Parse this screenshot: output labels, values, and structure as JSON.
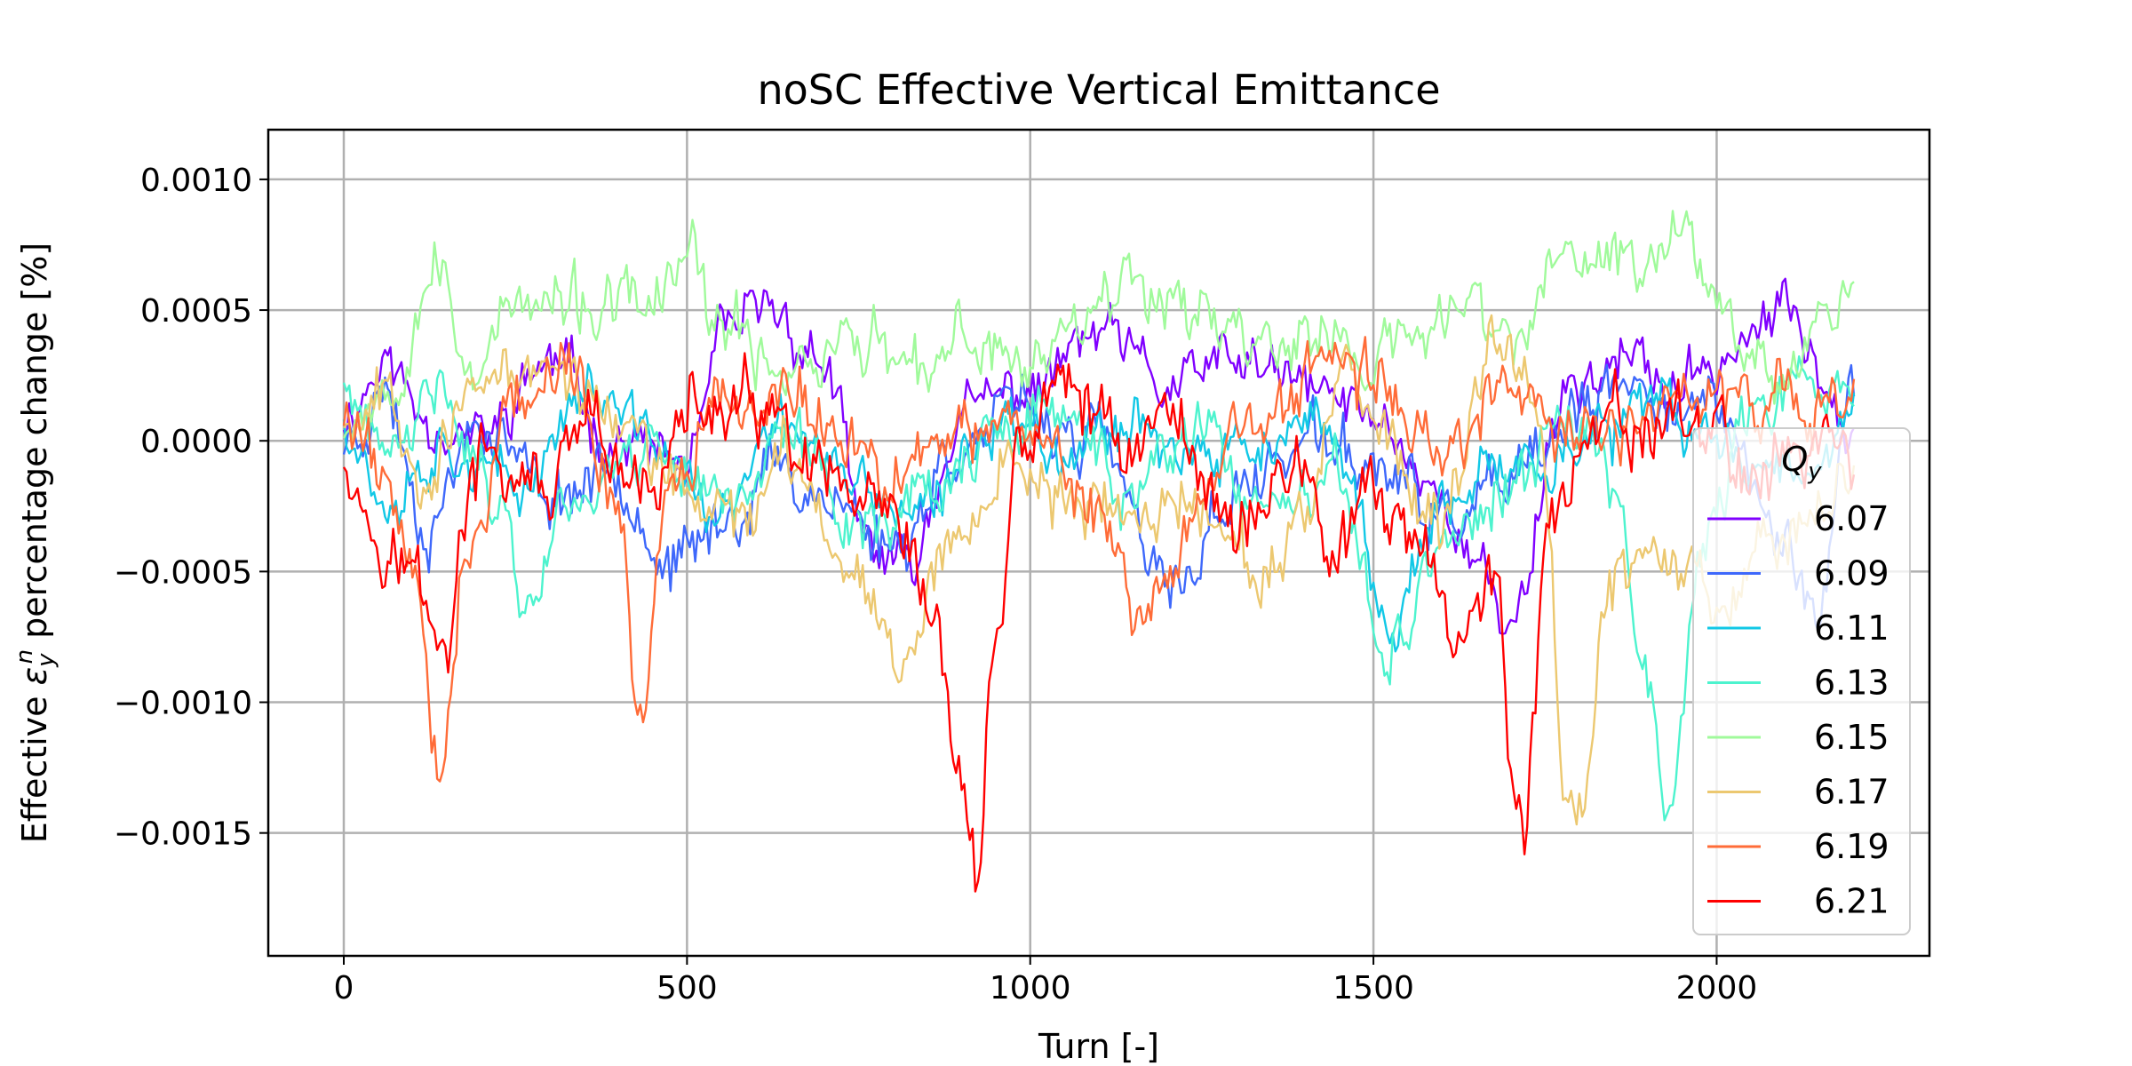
{
  "chart_data": {
    "type": "line",
    "title": "noSC Effective Vertical Emittance",
    "xlabel": "Turn [-]",
    "ylabel": {
      "prefix": "Effective ",
      "symbol": "ε",
      "sub": "y",
      "sup": "n",
      "suffix": " percentage change [%]"
    },
    "xlim": [
      -110,
      2310
    ],
    "ylim": [
      -0.00197,
      0.00119
    ],
    "x_ticks": [
      0,
      500,
      1000,
      1500,
      2000
    ],
    "y_ticks": [
      0.001,
      0.0005,
      0.0,
      -0.0005,
      -0.001,
      -0.0015
    ],
    "x_tick_labels": [
      "0",
      "500",
      "1000",
      "1500",
      "2000"
    ],
    "y_tick_labels": [
      "0.0010",
      "0.0005",
      "0.0000",
      "−0.0005",
      "−0.0010",
      "−0.0015"
    ],
    "grid": true,
    "legend": {
      "title_symbol": "Q",
      "title_sub": "y",
      "placement": "right"
    },
    "x_step": 4,
    "x_max": 2200,
    "series": [
      {
        "name": "6.07",
        "color": "#8000ff",
        "seed": 11,
        "amp": 0.00012,
        "anchors": [
          [
            0,
            0.0001
          ],
          [
            60,
            0.0003
          ],
          [
            120,
            0.0001
          ],
          [
            200,
            0.0
          ],
          [
            300,
            0.0003
          ],
          [
            400,
            0.0
          ],
          [
            500,
            -0.0001
          ],
          [
            560,
            0.0004
          ],
          [
            620,
            0.0005
          ],
          [
            700,
            0.0003
          ],
          [
            760,
            -0.0004
          ],
          [
            820,
            -0.0005
          ],
          [
            900,
            0.0001
          ],
          [
            1000,
            0.0002
          ],
          [
            1100,
            0.0004
          ],
          [
            1200,
            0.0002
          ],
          [
            1300,
            0.0003
          ],
          [
            1400,
            0.0002
          ],
          [
            1500,
            0.0001
          ],
          [
            1600,
            -0.0002
          ],
          [
            1650,
            -0.0005
          ],
          [
            1700,
            -0.0007
          ],
          [
            1780,
            0.0002
          ],
          [
            1850,
            0.0003
          ],
          [
            1950,
            0.0002
          ],
          [
            2050,
            0.0004
          ],
          [
            2100,
            0.0005
          ],
          [
            2150,
            0.0003
          ],
          [
            2200,
            0.0001
          ]
        ]
      },
      {
        "name": "6.09",
        "color": "#3e68fb",
        "seed": 23,
        "amp": 0.00013,
        "anchors": [
          [
            0,
            0.0
          ],
          [
            60,
            0.0002
          ],
          [
            120,
            -0.0003
          ],
          [
            200,
            0.0001
          ],
          [
            300,
            -0.0002
          ],
          [
            400,
            -0.0001
          ],
          [
            480,
            -0.0005
          ],
          [
            560,
            -0.0003
          ],
          [
            620,
            -0.0001
          ],
          [
            700,
            -0.0002
          ],
          [
            800,
            -0.0004
          ],
          [
            900,
            0.0
          ],
          [
            1000,
            0.0001
          ],
          [
            1100,
            0.0
          ],
          [
            1200,
            -0.0006
          ],
          [
            1300,
            -0.0002
          ],
          [
            1400,
            0.0
          ],
          [
            1500,
            -0.0001
          ],
          [
            1600,
            -0.0003
          ],
          [
            1700,
            -0.0002
          ],
          [
            1800,
            0.0001
          ],
          [
            1900,
            0.0002
          ],
          [
            2000,
            0.0001
          ],
          [
            2100,
            -0.0004
          ],
          [
            2150,
            -0.0006
          ],
          [
            2200,
            0.0002
          ]
        ]
      },
      {
        "name": "6.11",
        "color": "#12c8e6",
        "seed": 37,
        "amp": 0.00012,
        "anchors": [
          [
            0,
            0.0001
          ],
          [
            60,
            -0.0002
          ],
          [
            150,
            0.0
          ],
          [
            250,
            -0.0002
          ],
          [
            350,
            0.0002
          ],
          [
            450,
            0.0
          ],
          [
            550,
            -0.0003
          ],
          [
            650,
            0.0001
          ],
          [
            750,
            -0.0002
          ],
          [
            850,
            -0.0003
          ],
          [
            950,
            0.0001
          ],
          [
            1050,
            0.0
          ],
          [
            1150,
            0.0001
          ],
          [
            1250,
            -0.0001
          ],
          [
            1350,
            0.0
          ],
          [
            1450,
            0.0
          ],
          [
            1520,
            -0.0007
          ],
          [
            1600,
            -0.0003
          ],
          [
            1700,
            -0.0001
          ],
          [
            1800,
            0.0
          ],
          [
            1900,
            0.0001
          ],
          [
            2000,
            0.0
          ],
          [
            2100,
            -0.0001
          ],
          [
            2200,
            0.0001
          ]
        ]
      },
      {
        "name": "6.13",
        "color": "#4df3ce",
        "seed": 41,
        "amp": 0.00013,
        "anchors": [
          [
            0,
            0.0002
          ],
          [
            60,
            -0.0001
          ],
          [
            150,
            0.0002
          ],
          [
            220,
            -0.0002
          ],
          [
            270,
            -0.0006
          ],
          [
            330,
            -0.0002
          ],
          [
            450,
            0.0
          ],
          [
            550,
            -0.0002
          ],
          [
            650,
            0.0
          ],
          [
            750,
            -0.0003
          ],
          [
            850,
            -0.0002
          ],
          [
            950,
            0.0
          ],
          [
            1050,
            0.0001
          ],
          [
            1150,
            -0.0002
          ],
          [
            1250,
            0.0
          ],
          [
            1350,
            -0.0003
          ],
          [
            1450,
            -0.0002
          ],
          [
            1520,
            -0.0008
          ],
          [
            1600,
            -0.0004
          ],
          [
            1700,
            -0.0002
          ],
          [
            1800,
            0.0001
          ],
          [
            1860,
            -0.0002
          ],
          [
            1900,
            -0.0009
          ],
          [
            1930,
            -0.0014
          ],
          [
            1980,
            -0.0004
          ],
          [
            2050,
            0.0001
          ],
          [
            2150,
            0.0002
          ],
          [
            2200,
            0.0002
          ]
        ]
      },
      {
        "name": "6.15",
        "color": "#a0fa9b",
        "seed": 53,
        "amp": 0.00014,
        "anchors": [
          [
            0,
            0.0001
          ],
          [
            60,
            0.0002
          ],
          [
            130,
            0.0007
          ],
          [
            180,
            0.0003
          ],
          [
            250,
            0.0005
          ],
          [
            350,
            0.0005
          ],
          [
            450,
            0.0005
          ],
          [
            500,
            0.0007
          ],
          [
            550,
            0.0004
          ],
          [
            650,
            0.0003
          ],
          [
            750,
            0.0004
          ],
          [
            850,
            0.0002
          ],
          [
            900,
            0.0004
          ],
          [
            1000,
            0.0003
          ],
          [
            1100,
            0.0006
          ],
          [
            1200,
            0.0006
          ],
          [
            1300,
            0.0004
          ],
          [
            1400,
            0.0004
          ],
          [
            1500,
            0.0003
          ],
          [
            1550,
            0.0004
          ],
          [
            1650,
            0.0005
          ],
          [
            1700,
            0.0004
          ],
          [
            1800,
            0.0007
          ],
          [
            1900,
            0.0007
          ],
          [
            1950,
            0.0008
          ],
          [
            2000,
            0.0006
          ],
          [
            2050,
            0.0004
          ],
          [
            2100,
            0.0003
          ],
          [
            2200,
            0.0006
          ]
        ]
      },
      {
        "name": "6.17",
        "color": "#ecc870",
        "seed": 67,
        "amp": 0.00013,
        "anchors": [
          [
            0,
            0.0001
          ],
          [
            60,
            0.0002
          ],
          [
            120,
            -0.0001
          ],
          [
            200,
            0.0002
          ],
          [
            300,
            0.0003
          ],
          [
            400,
            0.0001
          ],
          [
            480,
            -0.0002
          ],
          [
            560,
            -0.0003
          ],
          [
            650,
            -0.0001
          ],
          [
            750,
            -0.0005
          ],
          [
            820,
            -0.0008
          ],
          [
            880,
            -0.0004
          ],
          [
            950,
            -0.0001
          ],
          [
            1050,
            -0.0002
          ],
          [
            1150,
            -0.0003
          ],
          [
            1250,
            -0.0002
          ],
          [
            1330,
            -0.0005
          ],
          [
            1400,
            -0.0004
          ],
          [
            1450,
            0.0002
          ],
          [
            1520,
            0.0
          ],
          [
            1600,
            -0.0004
          ],
          [
            1680,
            0.0004
          ],
          [
            1740,
            0.0002
          ],
          [
            1780,
            -0.0012
          ],
          [
            1800,
            -0.0014
          ],
          [
            1840,
            -0.0006
          ],
          [
            1900,
            -0.0004
          ],
          [
            1950,
            -0.0005
          ],
          [
            2000,
            -0.0006
          ],
          [
            2100,
            -0.0003
          ],
          [
            2200,
            -0.0001
          ]
        ]
      },
      {
        "name": "6.19",
        "color": "#ff6c38",
        "seed": 79,
        "amp": 0.00014,
        "anchors": [
          [
            0,
            0.0001
          ],
          [
            60,
            -0.0001
          ],
          [
            100,
            -0.0005
          ],
          [
            140,
            -0.0012
          ],
          [
            180,
            -0.0004
          ],
          [
            250,
            0.0002
          ],
          [
            320,
            0.0003
          ],
          [
            400,
            -0.0002
          ],
          [
            430,
            -0.001
          ],
          [
            480,
            -0.0002
          ],
          [
            550,
            0.0001
          ],
          [
            650,
            0.0002
          ],
          [
            720,
            0.0
          ],
          [
            800,
            -0.0001
          ],
          [
            900,
            0.0
          ],
          [
            1000,
            0.0001
          ],
          [
            1100,
            -0.0003
          ],
          [
            1170,
            -0.0007
          ],
          [
            1250,
            -0.0002
          ],
          [
            1350,
            0.0001
          ],
          [
            1450,
            0.0003
          ],
          [
            1500,
            0.0002
          ],
          [
            1600,
            0.0
          ],
          [
            1700,
            0.0002
          ],
          [
            1800,
            0.0
          ],
          [
            1900,
            0.0001
          ],
          [
            2000,
            0.0002
          ],
          [
            2100,
            0.0001
          ],
          [
            2200,
            0.0001
          ]
        ]
      },
      {
        "name": "6.21",
        "color": "#ff0000",
        "seed": 97,
        "amp": 0.00016,
        "anchors": [
          [
            0,
            0.0
          ],
          [
            40,
            -0.0003
          ],
          [
            100,
            -0.0005
          ],
          [
            140,
            -0.0008
          ],
          [
            200,
            -0.0001
          ],
          [
            300,
            -0.0002
          ],
          [
            350,
            0.0
          ],
          [
            420,
            -0.0002
          ],
          [
            520,
            0.0001
          ],
          [
            600,
            0.0001
          ],
          [
            700,
            -0.0002
          ],
          [
            800,
            -0.0004
          ],
          [
            860,
            -0.0007
          ],
          [
            900,
            -0.0013
          ],
          [
            920,
            -0.0017
          ],
          [
            950,
            -0.0007
          ],
          [
            990,
            0.0
          ],
          [
            1050,
            0.0002
          ],
          [
            1150,
            0.0
          ],
          [
            1200,
            0.0001
          ],
          [
            1300,
            -0.0003
          ],
          [
            1400,
            -0.0001
          ],
          [
            1450,
            -0.0005
          ],
          [
            1500,
            -0.0002
          ],
          [
            1550,
            -0.0004
          ],
          [
            1620,
            -0.0007
          ],
          [
            1680,
            -0.0005
          ],
          [
            1700,
            -0.0013
          ],
          [
            1720,
            -0.0015
          ],
          [
            1760,
            -0.0002
          ],
          [
            1850,
            0.0
          ],
          [
            1950,
            0.0001
          ],
          [
            2050,
            -0.0001
          ],
          [
            2150,
            0.0
          ],
          [
            2200,
            -0.0001
          ]
        ]
      }
    ]
  }
}
